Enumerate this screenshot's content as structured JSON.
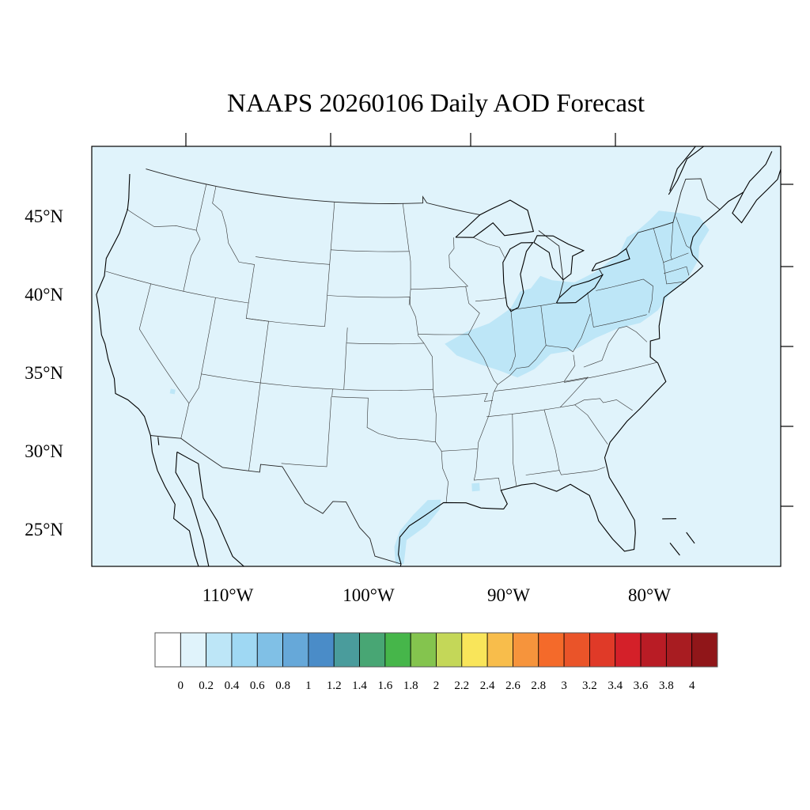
{
  "title": "NAAPS 20260106 Daily AOD Forecast",
  "map": {
    "background_color": "#e0f3fb",
    "aerosol_color": "#bde6f7",
    "lat_labels": [
      "45°N",
      "40°N",
      "35°N",
      "30°N",
      "25°N"
    ],
    "lon_labels": [
      "110°W",
      "100°W",
      "90°W",
      "80°W"
    ]
  },
  "colorbar": {
    "colors": [
      "#ffffff",
      "#e0f3fb",
      "#bde6f7",
      "#9fd8f3",
      "#80c0e6",
      "#66a8d9",
      "#4a8cc8",
      "#4a9c9c",
      "#48a674",
      "#46b64a",
      "#84c44e",
      "#c4d758",
      "#f9e55a",
      "#f8bd4b",
      "#f6943c",
      "#f46a2a",
      "#ea5429",
      "#e03a28",
      "#d42029",
      "#b91c25",
      "#a81c21",
      "#901619"
    ],
    "labels": [
      "0",
      "0.2",
      "0.4",
      "0.6",
      "0.8",
      "1",
      "1.2",
      "1.4",
      "1.6",
      "1.8",
      "2",
      "2.2",
      "2.4",
      "2.6",
      "2.8",
      "3",
      "3.2",
      "3.4",
      "3.6",
      "3.8",
      "4"
    ]
  }
}
